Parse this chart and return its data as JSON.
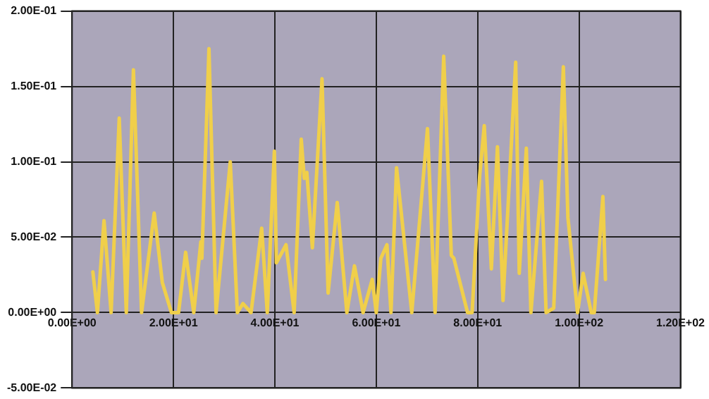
{
  "chart_data": {
    "type": "line",
    "x": [
      4.1,
      5,
      6.3,
      7.7,
      9.3,
      10.7,
      12.1,
      13.7,
      16.2,
      17.8,
      19.6,
      21,
      22.4,
      24,
      25.4,
      25.6,
      27,
      28.4,
      31.2,
      32.6,
      33.7,
      35.3,
      37.4,
      38.5,
      39.9,
      40.3,
      42.2,
      43.8,
      45.2,
      45.8,
      46.3,
      47.4,
      49.3,
      50.5,
      52.3,
      54.2,
      55.7,
      57.4,
      59.2,
      60,
      60.9,
      62.1,
      62.9,
      64,
      67,
      70.1,
      71.6,
      73.3,
      74.8,
      75.3,
      78,
      78.9,
      80.4,
      81.3,
      82.7,
      83.9,
      85,
      87.5,
      88.2,
      89.6,
      90.5,
      92.6,
      93.5,
      95,
      96.9,
      97.8,
      99.7,
      100.8,
      102.4,
      103,
      104.7,
      105.2
    ],
    "series": [
      {
        "color": "#f0cf4a",
        "values": [
          0.027,
          0,
          0.061,
          0,
          0.129,
          0,
          0.161,
          0,
          0.066,
          0.02,
          0,
          0,
          0.04,
          0,
          0.047,
          0.036,
          0.175,
          0,
          0.1,
          0,
          0.006,
          0,
          0.056,
          0,
          0.107,
          0.033,
          0.045,
          0,
          0.115,
          0.089,
          0.093,
          0.043,
          0.155,
          0.013,
          0.073,
          0,
          0.031,
          0,
          0.022,
          0,
          0.036,
          0.045,
          0,
          0.096,
          0,
          0.122,
          0,
          0.17,
          0.038,
          0.036,
          0,
          0,
          0.091,
          0.124,
          0.029,
          0.11,
          0.008,
          0.166,
          0.026,
          0.109,
          0,
          0.087,
          0,
          0.003,
          0.163,
          0.063,
          0,
          0.026,
          0,
          0,
          0.077,
          0.022
        ]
      }
    ],
    "xlim": [
      0,
      120
    ],
    "xticks": [
      {
        "value": 0,
        "label": "0.00E+00"
      },
      {
        "value": 20,
        "label": "2.00E+01"
      },
      {
        "value": 40,
        "label": "4.00E+01"
      },
      {
        "value": 60,
        "label": "6.00E+01"
      },
      {
        "value": 80,
        "label": "8.00E+01"
      },
      {
        "value": 100,
        "label": "1.00E+02"
      },
      {
        "value": 120,
        "label": "1.20E+02"
      }
    ],
    "ylim": [
      -0.05,
      0.2
    ],
    "yticks": [
      {
        "value": -0.05,
        "label": "-5.00E-02"
      },
      {
        "value": 0,
        "label": "0.00E+00"
      },
      {
        "value": 0.05,
        "label": "5.00E-02"
      },
      {
        "value": 0.1,
        "label": "1.00E-01"
      },
      {
        "value": 0.15,
        "label": "1.50E-01"
      },
      {
        "value": 0.2,
        "label": "2.00E-01"
      }
    ],
    "grid": true,
    "legend": false,
    "marker": "none",
    "line_style": "solid"
  }
}
